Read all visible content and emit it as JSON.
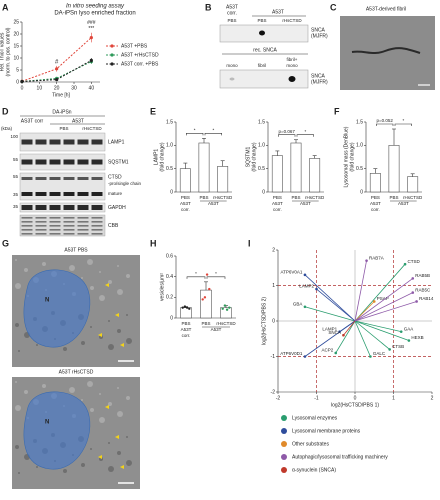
{
  "panel_labels": [
    "A",
    "B",
    "C",
    "D",
    "E",
    "F",
    "G",
    "H",
    "I"
  ],
  "chart_data": [
    {
      "type": "line",
      "title": "In vitro seeding assay",
      "subtitle": "DA-iPSn lyso enriched fraction",
      "xlabel": "Time [h]",
      "ylabel": [
        "Rel. ThioT values",
        "(norm. to pos. control)"
      ],
      "x": [
        0,
        20,
        40
      ],
      "xlim": [
        0,
        45
      ],
      "xticks": [
        0,
        10,
        20,
        30,
        40
      ],
      "ylim": [
        0,
        25
      ],
      "yticks": [
        0,
        5,
        10,
        15,
        20,
        25
      ],
      "line_style": "dashed",
      "series": [
        {
          "name": "A53T +PBS",
          "color": "#e0453a",
          "values": [
            0.3,
            5.5,
            18.5
          ],
          "errors": [
            0.3,
            1.2,
            2.0
          ]
        },
        {
          "name": "A53T +rHsCTSD",
          "color": "#2e9a5a",
          "values": [
            0.2,
            1.5,
            8.5
          ],
          "errors": [
            0.2,
            0.5,
            1.0
          ]
        },
        {
          "name": "A53T corr. +PBS",
          "color": "#222222",
          "values": [
            0.2,
            1.0,
            9.0
          ],
          "errors": [
            0.2,
            0.4,
            1.0
          ]
        }
      ],
      "annotations": [
        "#",
        "###",
        "***"
      ]
    },
    {
      "type": "bar",
      "ylabel": [
        "LAMP1",
        "(fold change)"
      ],
      "categories": [
        "PBS",
        "PBS",
        "rHsCTSD"
      ],
      "groups": [
        [
          "A53T",
          "corr."
        ],
        [
          "A53T"
        ]
      ],
      "values": [
        0.5,
        1.05,
        0.55
      ],
      "errors": [
        0.12,
        0.1,
        0.12
      ],
      "ylim": [
        0,
        1.5
      ],
      "yticks": [
        0,
        0.5,
        {
          "value": 1,
          "label": "1.0"
        },
        1.5
      ],
      "color": "#ffffff",
      "edge_color": "#555555",
      "annotations": [
        "*",
        "*"
      ]
    },
    {
      "type": "bar",
      "ylabel": [
        "SQSTM1",
        "(fold change)"
      ],
      "categories": [
        "PBS",
        "PBS",
        "rHsCTSD"
      ],
      "groups": [
        [
          "A53T",
          "corr."
        ],
        [
          "A53T"
        ]
      ],
      "values": [
        0.78,
        1.05,
        0.72
      ],
      "errors": [
        0.1,
        0.07,
        0.06
      ],
      "ylim": [
        0,
        1.5
      ],
      "yticks": [
        0,
        0.5,
        {
          "value": 1,
          "label": "1.0"
        },
        1.5
      ],
      "color": "#ffffff",
      "edge_color": "#555555",
      "annotations": [
        "p=0.067",
        "*"
      ]
    },
    {
      "type": "bar",
      "ylabel": [
        "Lysosomal mass (DenBlue)",
        "(fold change)"
      ],
      "categories": [
        "PBS",
        "PBS",
        "rHsCTSD"
      ],
      "groups": [
        [
          "A53T",
          "corr."
        ],
        [
          "A53T"
        ]
      ],
      "values": [
        0.4,
        1.0,
        0.33
      ],
      "errors": [
        0.1,
        0.35,
        0.06
      ],
      "ylim": [
        0,
        1.5
      ],
      "yticks": [
        0,
        0.5,
        {
          "value": 1,
          "label": "1.0"
        },
        1.5
      ],
      "color": "#ffffff",
      "edge_color": "#555555",
      "annotations": [
        "p=0.052",
        "*"
      ]
    },
    {
      "type": "bar",
      "ylabel": [
        "vesicles/µm²"
      ],
      "categories": [
        "PBS",
        "PBS",
        "rHsCTSD"
      ],
      "groups": [
        [
          "A53T",
          "corr."
        ],
        [
          "A53T"
        ]
      ],
      "values": [
        0.1,
        0.27,
        0.1
      ],
      "errors": [
        0.01,
        0.08,
        0.02
      ],
      "replicates": [
        [
          0.1,
          0.11,
          0.1,
          0.09
        ],
        [
          0.18,
          0.2,
          0.42,
          0.28
        ],
        [
          0.09,
          0.12,
          0.08,
          0.1
        ]
      ],
      "point_colors": [
        "#222222",
        "#e0453a",
        "#2e9a5a"
      ],
      "ylim": [
        0,
        0.6
      ],
      "yticks": [
        0,
        0.2,
        0.4,
        0.6
      ],
      "color": "#ffffff",
      "edge_color": "#555555",
      "annotations": [
        "*",
        "*"
      ]
    },
    {
      "type": "scatter",
      "xlabel": "log2(HsCTSD/PBS 1)",
      "ylabel": [
        "log2(HsCTSD/PBS 2)"
      ],
      "xlim": [
        -2,
        2
      ],
      "ylim": [
        -2,
        2
      ],
      "xticks": [
        -2,
        -1,
        0,
        1,
        2
      ],
      "yticks": [
        -2,
        -1,
        0,
        1,
        2
      ],
      "thresholds": [
        -1,
        1
      ],
      "threshold_color": "#b03030",
      "series": [
        {
          "name": "Lysosomal enzymes",
          "color": "#2a9d6f",
          "labels": [
            "CTSD",
            "GBA",
            "GAA",
            "CTSB",
            "GALC",
            "ACP2",
            "HEXB"
          ],
          "x": [
            1.3,
            -1.3,
            1.2,
            0.9,
            0.4,
            -0.5,
            1.4
          ],
          "values": [
            1.6,
            0.4,
            -0.3,
            -0.8,
            -1.0,
            -0.9,
            -0.55
          ]
        },
        {
          "name": "Lysosomal membrane proteins",
          "color": "#2f4d9c",
          "labels": [
            "ATP6V0A1",
            "LAMP2",
            "LAMP1",
            "ATP6V0D1"
          ],
          "x": [
            -1.3,
            -1.0,
            -0.4,
            -1.3
          ],
          "values": [
            1.3,
            0.9,
            -0.3,
            -1.0
          ]
        },
        {
          "name": "Other substrates",
          "color": "#e08a2b",
          "labels": [
            "PSAP"
          ],
          "x": [
            0.5
          ],
          "values": [
            0.55
          ]
        },
        {
          "name": "Autophagic/lysosomal trafficking machinery",
          "color": "#8e5aa8",
          "labels": [
            "RAB7A",
            "RAB5B",
            "RAB5C",
            "RAB14"
          ],
          "x": [
            0.3,
            1.5,
            1.5,
            1.6
          ],
          "values": [
            1.7,
            1.2,
            0.8,
            0.55
          ]
        },
        {
          "name": "α-synuclein (SNCA)",
          "color": "#c0392b",
          "labels": [
            "SNCA"
          ],
          "x": [
            -0.3
          ],
          "values": [
            -0.4
          ]
        }
      ]
    }
  ],
  "panels": {
    "B": {
      "top": {
        "group_a": [
          "A53T",
          "corr."
        ],
        "group_b": "A53T",
        "lanes": [
          "PBS",
          "PBS",
          "rHsCTSD"
        ],
        "blot": [
          "SNCA",
          "(MJFR)"
        ]
      },
      "bottom": {
        "title": "rec. SNCA",
        "lanes": [
          "mono",
          "fibril",
          [
            "fibril+",
            "mono"
          ]
        ],
        "blot": [
          "SNCA",
          "(MJFR)"
        ]
      }
    },
    "C": {
      "title": "A53T-derived fibril"
    },
    "D": {
      "title": "DA-iPSn",
      "groups": [
        "AS3T corr",
        "A53T"
      ],
      "lanes": [
        "PBS",
        "rHsCTSD"
      ],
      "unit": "(kDa)",
      "markers": [
        100,
        55,
        55,
        35,
        35
      ],
      "rows": [
        "LAMP1",
        "SQSTM1",
        "CTSD",
        "GAPDH",
        "CBB"
      ],
      "ctsd_bands": [
        "-pro/single chain",
        "mature"
      ]
    },
    "G": {
      "images": [
        {
          "title": "A53T PBS",
          "nucleus": "N"
        },
        {
          "title": "A53T rHsCTSD",
          "nucleus": "N"
        }
      ]
    }
  }
}
